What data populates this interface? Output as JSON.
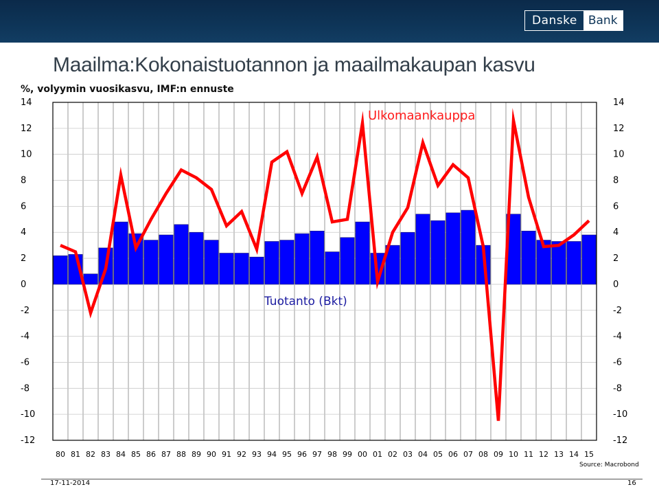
{
  "header": {
    "logo_part1": "Danske",
    "logo_part2": "Bank"
  },
  "title": "Maailma:Kokonaistuotannon ja maailmakaupan kasvu",
  "subtitle": "%, volyymin vuosikasvu, IMF:n ennuste",
  "source": "Source: Macrobond",
  "footer": {
    "date": "17-11-2014",
    "page": "16"
  },
  "colors": {
    "bars": "#0000ff",
    "line": "#ff0000",
    "header": "#0e3558",
    "label_blue": "#1a1aa0",
    "label_red": "#ff1a1a"
  },
  "chart_data": {
    "type": "bar",
    "xlabel": "",
    "ylabel": "",
    "ylim": [
      -12,
      14
    ],
    "yticks": [
      14,
      12,
      10,
      8,
      6,
      4,
      2,
      0,
      -2,
      -4,
      -6,
      -8,
      -10,
      -12
    ],
    "ytick_labels": [
      "14",
      "12",
      "10",
      "8",
      "6",
      "4",
      "2",
      "0",
      "-2",
      "-4",
      "-6",
      "-8",
      "-10",
      "-12"
    ],
    "grid": true,
    "categories": [
      "80",
      "81",
      "82",
      "83",
      "84",
      "85",
      "86",
      "87",
      "88",
      "89",
      "90",
      "91",
      "92",
      "93",
      "94",
      "95",
      "96",
      "97",
      "98",
      "99",
      "00",
      "01",
      "02",
      "03",
      "04",
      "05",
      "06",
      "07",
      "08",
      "09",
      "10",
      "11",
      "12",
      "13",
      "14",
      "15"
    ],
    "series": [
      {
        "name": "Tuotanto (Bkt)",
        "type": "bar",
        "values": [
          2.2,
          2.3,
          0.8,
          2.8,
          4.8,
          3.9,
          3.4,
          3.8,
          4.6,
          4.0,
          3.4,
          2.4,
          2.4,
          2.1,
          3.3,
          3.4,
          3.9,
          4.1,
          2.5,
          3.6,
          4.8,
          2.4,
          3.0,
          4.0,
          5.4,
          4.9,
          5.5,
          5.7,
          3.0,
          0.0,
          5.4,
          4.1,
          3.4,
          3.3,
          3.3,
          3.8
        ]
      },
      {
        "name": "Ulkomaankauppa",
        "type": "line",
        "values": [
          3.0,
          2.5,
          -2.2,
          1.2,
          8.4,
          2.8,
          5.0,
          7.0,
          8.8,
          8.2,
          7.3,
          4.5,
          5.6,
          2.7,
          9.4,
          10.2,
          7.0,
          9.8,
          4.8,
          5.0,
          12.4,
          0.2,
          4.0,
          5.9,
          10.9,
          7.6,
          9.2,
          8.2,
          2.9,
          -10.5,
          12.6,
          6.7,
          2.9,
          3.0,
          3.8,
          4.9
        ]
      }
    ]
  }
}
